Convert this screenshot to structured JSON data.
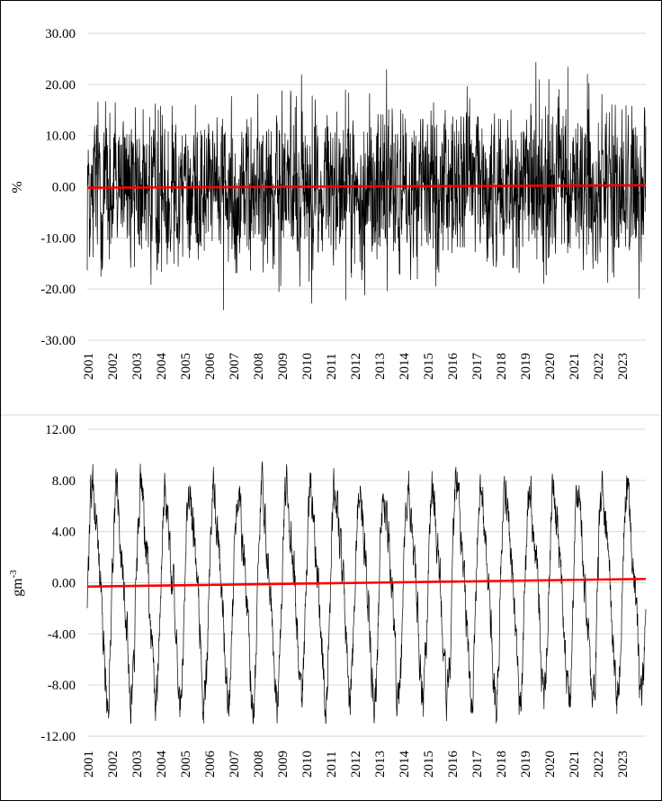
{
  "chart_data": [
    {
      "type": "line",
      "title": "",
      "xlabel": "",
      "ylabel": "%",
      "ylim": [
        -30,
        30
      ],
      "y_ticks": [
        "30.00",
        "20.00",
        "10.00",
        "0.00",
        "-10.00",
        "-20.00",
        "-30.00"
      ],
      "y_tick_values": [
        30,
        20,
        10,
        0,
        -10,
        -20,
        -30
      ],
      "x_ticks": [
        "2001",
        "2002",
        "2003",
        "2004",
        "2005",
        "2006",
        "2007",
        "2008",
        "2009",
        "2010",
        "2011",
        "2012",
        "2013",
        "2014",
        "2015",
        "2016",
        "2017",
        "2018",
        "2019",
        "2020",
        "2021",
        "2022",
        "2023"
      ],
      "x_range": [
        2001,
        2024
      ],
      "grid": true,
      "series": [
        {
          "description_of_signal": "daily anomaly, noisy, no seasonality",
          "amplitude": 25,
          "seasonal_amplitude": 0,
          "noise_amplitude": 11,
          "color": "#000000"
        }
      ],
      "trend": {
        "color": "#ff0000",
        "y_start": -0.2,
        "y_end": 0.3
      }
    },
    {
      "type": "line",
      "title": "",
      "xlabel": "",
      "ylabel": "gm-3",
      "ylim": [
        -12,
        12
      ],
      "y_ticks": [
        "12.00",
        "8.00",
        "4.00",
        "0.00",
        "-4.00",
        "-8.00",
        "-12.00"
      ],
      "y_tick_values": [
        12,
        8,
        4,
        0,
        -4,
        -8,
        -12
      ],
      "x_ticks": [
        "2001",
        "2002",
        "2003",
        "2004",
        "2005",
        "2006",
        "2007",
        "2008",
        "2009",
        "2010",
        "2011",
        "2012",
        "2013",
        "2014",
        "2015",
        "2016",
        "2017",
        "2018",
        "2019",
        "2020",
        "2021",
        "2022",
        "2023"
      ],
      "x_range": [
        2001,
        2024
      ],
      "grid": true,
      "series": [
        {
          "description_of_signal": "seasonal oscillation with noise",
          "seasonal_amplitude": 7.5,
          "noise_amplitude": 1.8,
          "color": "#000000"
        }
      ],
      "trend": {
        "color": "#ff0000",
        "y_start": -0.3,
        "y_end": 0.3
      }
    }
  ]
}
